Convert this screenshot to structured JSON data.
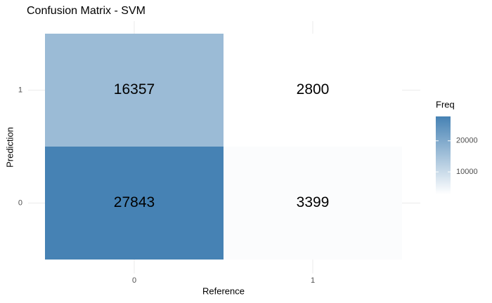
{
  "chart_data": {
    "type": "heatmap",
    "title": "Confusion Matrix - SVM",
    "x_label": "Reference",
    "y_label": "Prediction",
    "x_categories": [
      "0",
      "1"
    ],
    "y_categories": [
      "0",
      "1"
    ],
    "values": [
      [
        27843,
        3399
      ],
      [
        16357,
        2800
      ]
    ],
    "low_color": "#ffffff",
    "high_color": "#4682b4",
    "legend_title": "Freq",
    "legend_ticks": [
      10000,
      20000
    ],
    "grid": true
  }
}
